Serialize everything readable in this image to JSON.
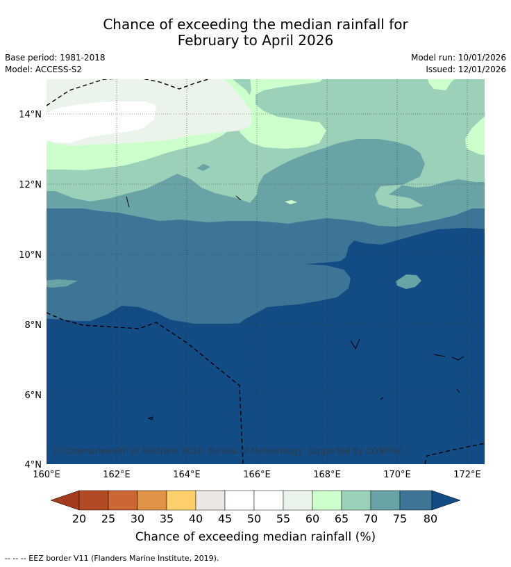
{
  "title": {
    "line1": "Chance of exceeding the median rainfall for",
    "line2": "February to April 2026"
  },
  "meta": {
    "base_period": "Base period: 1981-2018",
    "model": "Model: ACCESS-S2",
    "model_run": "Model run: 10/01/2026",
    "issued": "Issued: 12/01/2026"
  },
  "map": {
    "lat_labels": [
      "14°N",
      "12°N",
      "10°N",
      "8°N",
      "6°N",
      "4°N"
    ],
    "lon_labels": [
      "160°E",
      "162°E",
      "164°E",
      "166°E",
      "168°E",
      "170°E",
      "172°E"
    ],
    "copyright": "© Commonwealth of Australia 2026, Bureau of Meteorology, supported by COSPPac"
  },
  "colorbar": {
    "ticks": [
      "20",
      "25",
      "30",
      "35",
      "40",
      "45",
      "50",
      "55",
      "60",
      "65",
      "70",
      "75",
      "80"
    ],
    "label": "Chance of exceeding median rainfall (%)",
    "colors": {
      "below20": "#a33a1f",
      "c20_25": "#b24a25",
      "c25_30": "#cc6633",
      "c30_35": "#e09347",
      "c35_40": "#fdcf6b",
      "c40_45": "#ebe8e4",
      "c45_50": "#ffffff",
      "c50_55": "#ffffff",
      "c55_60": "#eaf4ea",
      "c60_65": "#ccffcc",
      "c65_70": "#9bd1b8",
      "c70_75": "#6aa3a6",
      "c75_80": "#3e7596",
      "above80": "#134c85"
    }
  },
  "footer": "-- -- -- EEZ border V11 (Flanders Marine Institute, 2019)."
}
